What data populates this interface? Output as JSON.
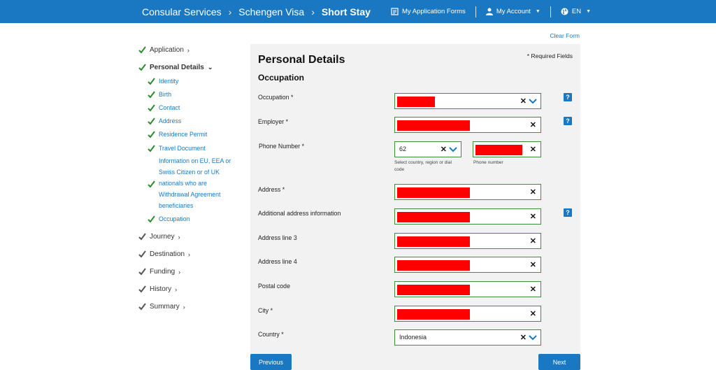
{
  "header": {
    "breadcrumbs": [
      "Consular Services",
      "Schengen Visa",
      "Short Stay"
    ],
    "my_forms": "My Application Forms",
    "my_account": "My Account",
    "language": "EN"
  },
  "clear_form": "Clear Form",
  "sidebar": {
    "application": "Application",
    "personal_details": "Personal Details",
    "sub": [
      "Identity",
      "Birth",
      "Contact",
      "Address",
      "Residence Permit",
      "Travel Document"
    ],
    "eu_info": "Information on EU, EEA or Swiss Citizen or of UK nationals who are Withdrawal Agreement beneficiaries",
    "eu_lines": [
      "Information on EU, EEA or",
      "Swiss Citizen or of UK",
      "nationals who are",
      "Withdrawal Agreement",
      "beneficiaries"
    ],
    "occupation": "Occupation",
    "journey": "Journey",
    "destination": "Destination",
    "funding": "Funding",
    "history": "History",
    "summary": "Summary"
  },
  "form": {
    "title": "Personal Details",
    "section": "Occupation",
    "required_note": "* Required Fields",
    "occupation_label": "Occupation *",
    "employer_label": "Employer *",
    "phone_label": "Phone Number *",
    "phone_code_value": "62",
    "phone_code_hint_1": "Select country, region or dial",
    "phone_code_hint_2": "code",
    "phone_number_hint": "Phone number",
    "address_label": "Address *",
    "additional_label": "Additional address information",
    "line3_label": "Address line 3",
    "line4_label": "Address line 4",
    "postal_label": "Postal code",
    "city_label": "City *",
    "country_label": "Country *",
    "country_value": "Indonesia"
  },
  "buttons": {
    "previous": "Previous",
    "next": "Next"
  },
  "colors": {
    "brand": "#1a78c2",
    "check": "#2e8b2e",
    "field_border": "#3d8f3d",
    "redaction": "#ff0000"
  }
}
